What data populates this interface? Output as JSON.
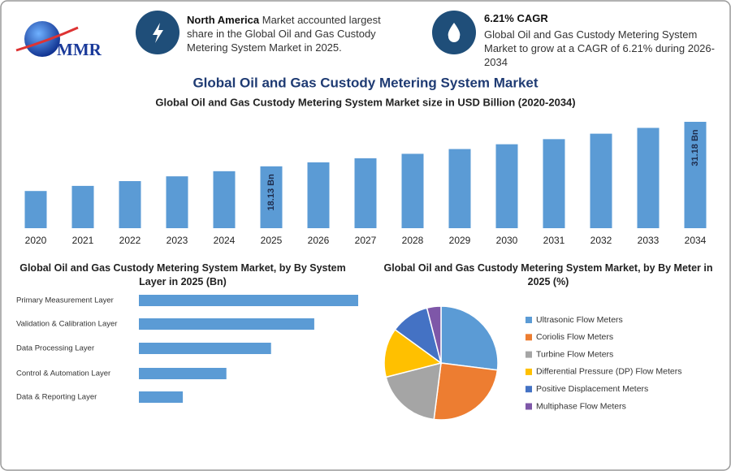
{
  "header": {
    "logo": "MMR",
    "highlights": [
      {
        "title": "North America",
        "text": "Market accounted largest share in the Global Oil and Gas Custody Metering System Market in 2025."
      },
      {
        "title": "6.21% CAGR",
        "text": "Global Oil and Gas Custody Metering System Market to grow at a CAGR of 6.21% during 2026-2034"
      }
    ],
    "title": "Global Oil and Gas Custody Metering System Market"
  },
  "chart_data": [
    {
      "type": "bar",
      "title": "Global Oil and Gas Custody Metering System Market size in USD Billion (2020-2034)",
      "categories": [
        "2020",
        "2021",
        "2022",
        "2023",
        "2024",
        "2025",
        "2026",
        "2027",
        "2028",
        "2029",
        "2030",
        "2031",
        "2032",
        "2033",
        "2034"
      ],
      "values": [
        10.9,
        12.4,
        13.8,
        15.2,
        16.7,
        18.13,
        19.3,
        20.5,
        21.8,
        23.2,
        24.6,
        26.1,
        27.7,
        29.4,
        31.18
      ],
      "value_labels": [
        null,
        null,
        null,
        null,
        null,
        "18.13 Bn",
        null,
        null,
        null,
        null,
        null,
        null,
        null,
        null,
        "31.18 Bn"
      ],
      "color": "#5b9bd5"
    },
    {
      "type": "bar",
      "horizontal": true,
      "title": "Global Oil and Gas Custody Metering System Market, by By System Layer in 2025 (Bn)",
      "categories": [
        "Primary Measurement Layer",
        "Validation & Calibration Layer",
        "Data Processing Layer",
        "Control & Automation Layer",
        "Data & Reporting Layer"
      ],
      "values": [
        6.04,
        4.83,
        3.64,
        2.41,
        1.21
      ],
      "color": "#5b9bd5"
    },
    {
      "type": "pie",
      "title": "Global Oil and Gas Custody Metering System Market, by By Meter in 2025 (%)",
      "categories": [
        "Ultrasonic Flow Meters",
        "Coriolis Flow Meters",
        "Turbine Flow Meters",
        "Differential Pressure (DP) Flow Meters",
        "Positive Displacement Meters",
        "Multiphase Flow Meters"
      ],
      "values": [
        27,
        25,
        19,
        14,
        11,
        4
      ],
      "colors": [
        "#5b9bd5",
        "#ed7d31",
        "#a5a5a5",
        "#ffc000",
        "#4472c4",
        "#7e57a8"
      ]
    }
  ]
}
